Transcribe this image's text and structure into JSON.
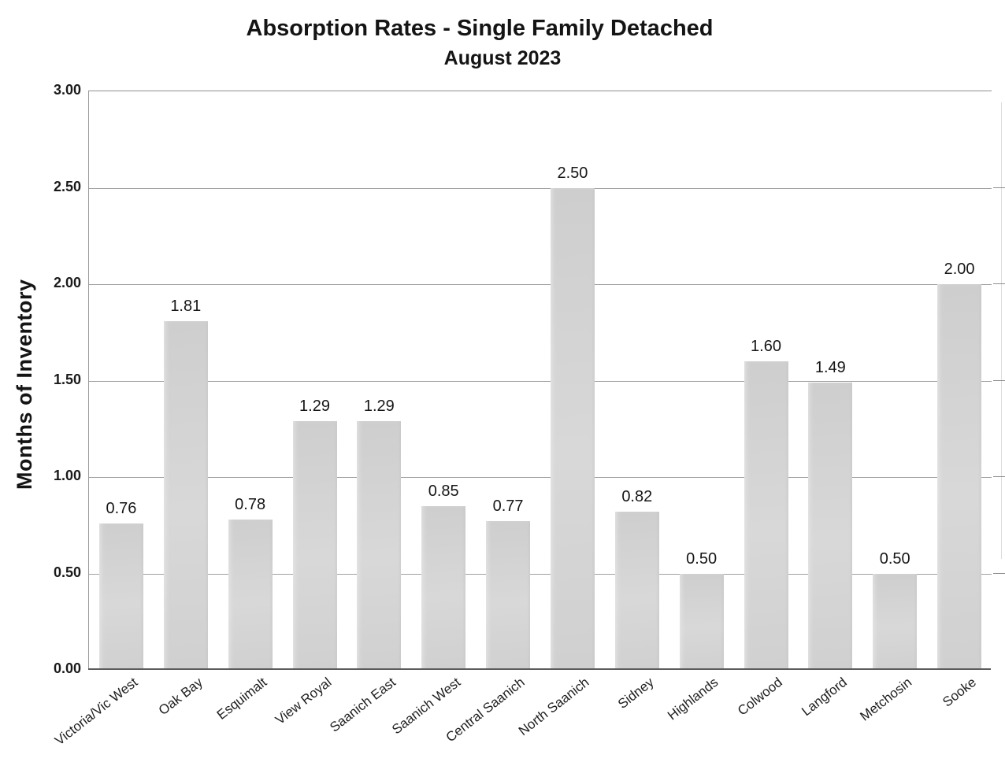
{
  "chart_data": {
    "type": "bar",
    "title": "Absorption Rates - Single Family Detached",
    "subtitle": "August 2023",
    "ylabel": "Months of Inventory",
    "xlabel": "",
    "categories": [
      "Victoria/Vic West",
      "Oak Bay",
      "Esquimalt",
      "View Royal",
      "Saanich East",
      "Saanich West",
      "Central Saanich",
      "North Saanich",
      "Sidney",
      "Highlands",
      "Colwood",
      "Langford",
      "Metchosin",
      "Sooke"
    ],
    "values": [
      0.76,
      1.81,
      0.78,
      1.29,
      1.29,
      0.85,
      0.77,
      2.5,
      0.82,
      0.5,
      1.6,
      1.49,
      0.5,
      2.0
    ],
    "value_labels": [
      "0.76",
      "1.81",
      "0.78",
      "1.29",
      "1.29",
      "0.85",
      "0.77",
      "2.50",
      "0.82",
      "0.50",
      "1.60",
      "1.49",
      "0.50",
      "2.00"
    ],
    "ylim": [
      0,
      3
    ],
    "ytick_interval": 0.5,
    "yticks": [
      "0.00",
      "0.50",
      "1.00",
      "1.50",
      "2.00",
      "2.50",
      "3.00"
    ],
    "grid": true,
    "legend": "none",
    "bar_color_light": "#d8d8d8",
    "bar_color_dark": "#cecece",
    "gridline_color": "#8f8f8f",
    "axis_color": "#5c5c5c",
    "text_color": "#1b1b1b"
  }
}
